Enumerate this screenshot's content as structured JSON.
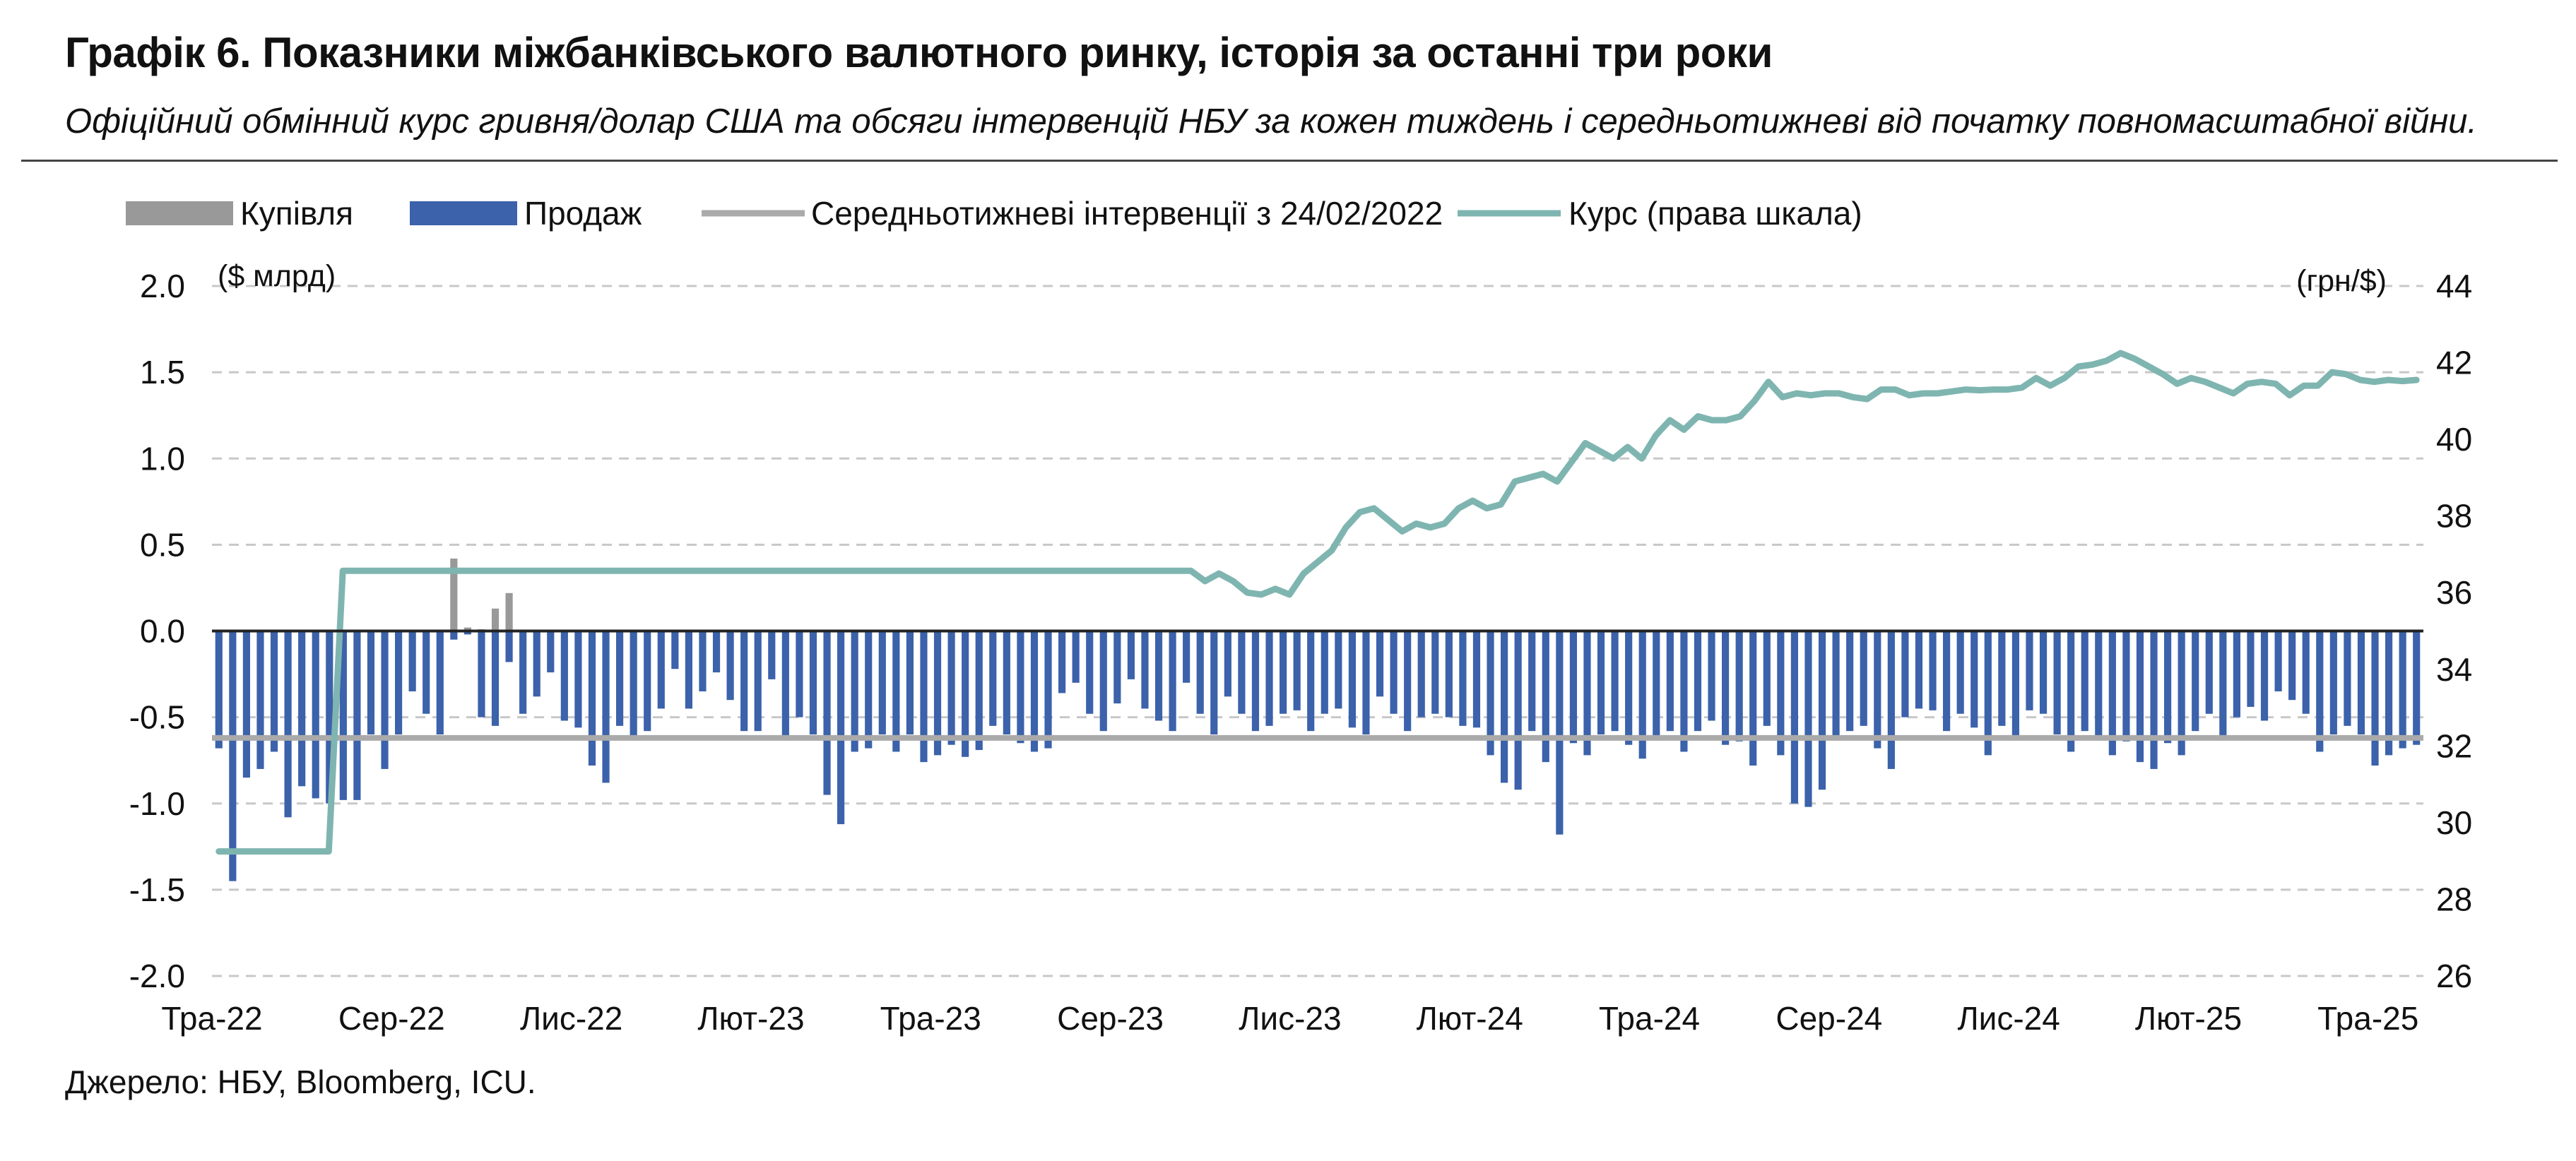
{
  "title": "Графік 6. Показники міжбанківського валютного ринку, історія за останні три роки",
  "subtitle": "Офіційний обмінний курс гривня/долар США та обсяги інтервенцій НБУ за кожен тиждень і середньотижневі від початку повномасштабної війни.",
  "source": "Джерело: НБУ, Bloomberg, ICU.",
  "colors": {
    "purchase": "#999999",
    "sale": "#3b62aa",
    "average": "#aaaaaa",
    "rate": "#7fb5b0",
    "zero_line": "#222222",
    "grid": "#c8c8c8",
    "text": "#111111"
  },
  "chart_data": {
    "type": "bar",
    "legend": {
      "placement": "top",
      "items": [
        {
          "label": "Купівля",
          "kind": "bar",
          "color": "#999999"
        },
        {
          "label": "Продаж",
          "kind": "bar",
          "color": "#3b62aa"
        },
        {
          "label": "Середньотижневі інтервенції з 24/02/2022",
          "kind": "line",
          "color": "#aaaaaa"
        },
        {
          "label": "Курс (права шкала)",
          "kind": "line",
          "color": "#7fb5b0"
        }
      ]
    },
    "left_axis": {
      "unit_label": "($ млрд)",
      "ylim": [
        -2.0,
        2.0
      ],
      "ticks": [
        "2.0",
        "1.5",
        "1.0",
        "0.5",
        "0.0",
        "-0.5",
        "-1.0",
        "-1.5",
        "-2.0"
      ],
      "tick_values": [
        2.0,
        1.5,
        1.0,
        0.5,
        0.0,
        -0.5,
        -1.0,
        -1.5,
        -2.0
      ],
      "grid": true
    },
    "right_axis": {
      "unit_label": "(грн/$)",
      "ylim": [
        26,
        44
      ],
      "ticks": [
        "44",
        "42",
        "40",
        "38",
        "36",
        "34",
        "32",
        "30",
        "28",
        "26"
      ],
      "tick_values": [
        44,
        42,
        40,
        38,
        36,
        34,
        32,
        30,
        28,
        26
      ]
    },
    "x_axis": {
      "tick_labels": [
        "Тра-22",
        "Сер-22",
        "Лис-22",
        "Лют-23",
        "Тра-23",
        "Сер-23",
        "Лис-23",
        "Лют-24",
        "Тра-24",
        "Сер-24",
        "Лис-24",
        "Лют-25",
        "Тра-25"
      ],
      "tick_weeks": [
        0,
        13,
        26,
        39,
        52,
        65,
        78,
        91,
        104,
        117,
        130,
        143,
        156
      ]
    },
    "week_count": 160,
    "series": [
      {
        "name": "Купівля",
        "type": "bar",
        "values": [
          0,
          0,
          0,
          0,
          0,
          0,
          0,
          0,
          0,
          0,
          0,
          0,
          0,
          0,
          0,
          0,
          0,
          0.42,
          0.02,
          0.01,
          0.13,
          0.22,
          0,
          0,
          0,
          0,
          0,
          0,
          0,
          0,
          0,
          0,
          0,
          0,
          0,
          0,
          0,
          0,
          0,
          0,
          0,
          0,
          0,
          0,
          0,
          0,
          0,
          0,
          0,
          0,
          0,
          0,
          0,
          0,
          0,
          0,
          0,
          0,
          0,
          0,
          0,
          0,
          0,
          0,
          0,
          0,
          0,
          0,
          0,
          0,
          0,
          0,
          0,
          0,
          0,
          0,
          0,
          0,
          0,
          0,
          0,
          0,
          0,
          0,
          0,
          0,
          0,
          0,
          0,
          0,
          0,
          0,
          0,
          0,
          0,
          0,
          0,
          0,
          0,
          0,
          0,
          0,
          0,
          0,
          0,
          0,
          0,
          0,
          0,
          0,
          0,
          0,
          0,
          0,
          0,
          0,
          0,
          0,
          0,
          0,
          0,
          0,
          0,
          0,
          0,
          0,
          0,
          0,
          0,
          0,
          0,
          0,
          0,
          0,
          0,
          0,
          0,
          0,
          0,
          0,
          0,
          0,
          0,
          0,
          0,
          0,
          0,
          0,
          0,
          0,
          0,
          0,
          0,
          0,
          0,
          0,
          0,
          0,
          0,
          0
        ]
      },
      {
        "name": "Продаж",
        "type": "bar",
        "values": [
          -0.68,
          -1.45,
          -0.85,
          -0.8,
          -0.7,
          -1.08,
          -0.9,
          -0.97,
          -1.0,
          -0.98,
          -0.98,
          -0.6,
          -0.8,
          -0.6,
          -0.35,
          -0.48,
          -0.6,
          -0.05,
          -0.02,
          -0.5,
          -0.55,
          -0.18,
          -0.48,
          -0.38,
          -0.24,
          -0.52,
          -0.56,
          -0.78,
          -0.88,
          -0.55,
          -0.62,
          -0.58,
          -0.45,
          -0.22,
          -0.45,
          -0.35,
          -0.24,
          -0.4,
          -0.58,
          -0.58,
          -0.28,
          -0.63,
          -0.5,
          -0.6,
          -0.95,
          -1.12,
          -0.7,
          -0.68,
          -0.6,
          -0.7,
          -0.6,
          -0.76,
          -0.72,
          -0.66,
          -0.73,
          -0.69,
          -0.55,
          -0.6,
          -0.65,
          -0.7,
          -0.68,
          -0.36,
          -0.3,
          -0.48,
          -0.58,
          -0.42,
          -0.28,
          -0.45,
          -0.52,
          -0.58,
          -0.3,
          -0.48,
          -0.6,
          -0.38,
          -0.48,
          -0.58,
          -0.55,
          -0.48,
          -0.46,
          -0.58,
          -0.48,
          -0.45,
          -0.56,
          -0.6,
          -0.38,
          -0.48,
          -0.58,
          -0.5,
          -0.48,
          -0.5,
          -0.55,
          -0.56,
          -0.72,
          -0.88,
          -0.92,
          -0.58,
          -0.76,
          -1.18,
          -0.65,
          -0.72,
          -0.6,
          -0.58,
          -0.66,
          -0.74,
          -0.62,
          -0.58,
          -0.7,
          -0.58,
          -0.52,
          -0.66,
          -0.64,
          -0.78,
          -0.55,
          -0.72,
          -1.0,
          -1.02,
          -0.92,
          -0.62,
          -0.58,
          -0.55,
          -0.68,
          -0.8,
          -0.5,
          -0.45,
          -0.46,
          -0.58,
          -0.48,
          -0.56,
          -0.72,
          -0.55,
          -0.62,
          -0.46,
          -0.48,
          -0.6,
          -0.7,
          -0.58,
          -0.63,
          -0.72,
          -0.64,
          -0.76,
          -0.8,
          -0.65,
          -0.72,
          -0.58,
          -0.48,
          -0.62,
          -0.5,
          -0.44,
          -0.52,
          -0.35,
          -0.4,
          -0.48,
          -0.7,
          -0.6,
          -0.55,
          -0.6,
          -0.78,
          -0.72,
          -0.68,
          -0.66
        ]
      },
      {
        "name": "Середньотижневі інтервенції з 24/02/2022",
        "type": "line",
        "axis": "left",
        "value": -0.62
      },
      {
        "name": "Курс (права шкала)",
        "type": "line",
        "axis": "right",
        "points": [
          [
            0,
            29.25
          ],
          [
            7.8,
            29.25
          ],
          [
            8.8,
            36.57
          ],
          [
            69,
            36.57
          ],
          [
            70,
            36.3
          ],
          [
            71,
            36.5
          ],
          [
            72,
            36.3
          ],
          [
            73,
            36.0
          ],
          [
            74,
            35.95
          ],
          [
            75,
            36.1
          ],
          [
            76,
            35.95
          ],
          [
            77,
            36.5
          ],
          [
            78,
            36.8
          ],
          [
            79,
            37.1
          ],
          [
            80,
            37.7
          ],
          [
            81,
            38.1
          ],
          [
            82,
            38.2
          ],
          [
            83,
            37.9
          ],
          [
            84,
            37.6
          ],
          [
            85,
            37.8
          ],
          [
            86,
            37.7
          ],
          [
            87,
            37.8
          ],
          [
            88,
            38.2
          ],
          [
            89,
            38.4
          ],
          [
            90,
            38.2
          ],
          [
            91,
            38.3
          ],
          [
            92,
            38.9
          ],
          [
            93,
            39.0
          ],
          [
            94,
            39.1
          ],
          [
            95,
            38.9
          ],
          [
            96,
            39.4
          ],
          [
            97,
            39.9
          ],
          [
            98,
            39.7
          ],
          [
            99,
            39.5
          ],
          [
            100,
            39.8
          ],
          [
            101,
            39.5
          ],
          [
            102,
            40.1
          ],
          [
            103,
            40.5
          ],
          [
            104,
            40.25
          ],
          [
            105,
            40.6
          ],
          [
            106,
            40.5
          ],
          [
            107,
            40.5
          ],
          [
            108,
            40.6
          ],
          [
            109,
            41.0
          ],
          [
            110,
            41.5
          ],
          [
            111,
            41.1
          ],
          [
            112,
            41.2
          ],
          [
            113,
            41.15
          ],
          [
            114,
            41.2
          ],
          [
            115,
            41.2
          ],
          [
            116,
            41.1
          ],
          [
            117,
            41.05
          ],
          [
            118,
            41.3
          ],
          [
            119,
            41.3
          ],
          [
            120,
            41.15
          ],
          [
            121,
            41.2
          ],
          [
            122,
            41.2
          ],
          [
            123,
            41.25
          ],
          [
            124,
            41.3
          ],
          [
            125,
            41.28
          ],
          [
            126,
            41.3
          ],
          [
            127,
            41.3
          ],
          [
            128,
            41.35
          ],
          [
            129,
            41.6
          ],
          [
            130,
            41.4
          ],
          [
            131,
            41.6
          ],
          [
            132,
            41.9
          ],
          [
            133,
            41.95
          ],
          [
            134,
            42.05
          ],
          [
            135,
            42.25
          ],
          [
            136,
            42.1
          ],
          [
            137,
            41.9
          ],
          [
            138,
            41.7
          ],
          [
            139,
            41.45
          ],
          [
            140,
            41.6
          ],
          [
            141,
            41.5
          ],
          [
            142,
            41.35
          ],
          [
            143,
            41.2
          ],
          [
            144,
            41.45
          ],
          [
            145,
            41.5
          ],
          [
            146,
            41.45
          ],
          [
            147,
            41.15
          ],
          [
            148,
            41.4
          ],
          [
            149,
            41.4
          ],
          [
            150,
            41.75
          ],
          [
            151,
            41.7
          ],
          [
            152,
            41.55
          ],
          [
            153,
            41.5
          ],
          [
            154,
            41.55
          ],
          [
            155,
            41.52
          ],
          [
            156,
            41.55
          ]
        ]
      }
    ]
  }
}
